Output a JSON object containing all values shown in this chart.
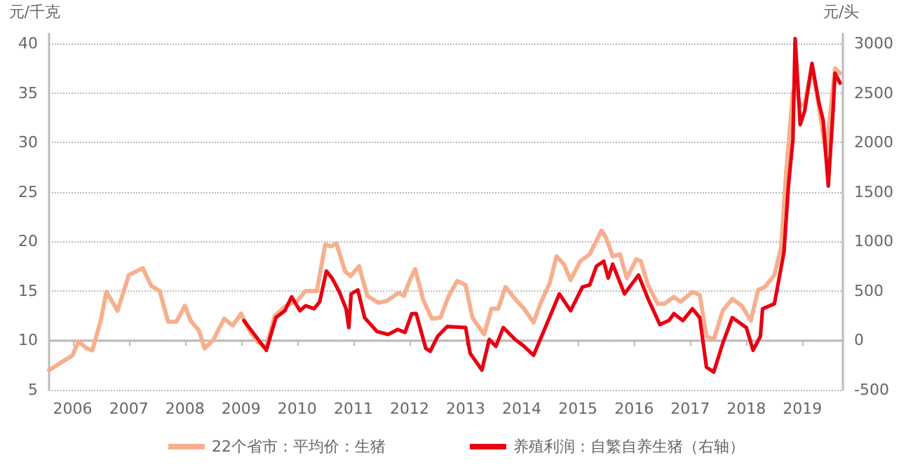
{
  "chart_data": {
    "type": "line",
    "ylabel": "元/千克",
    "y2label": "元/头",
    "xlim": [
      2005.58,
      2019.72
    ],
    "xticks": [
      2006,
      2007,
      2008,
      2009,
      2010,
      2011,
      2012,
      2013,
      2014,
      2015,
      2016,
      2017,
      2018,
      2019
    ],
    "ylim": [
      5,
      41
    ],
    "yticks": [
      5,
      10,
      15,
      20,
      25,
      30,
      35,
      40
    ],
    "y2lim": [
      -500,
      3100
    ],
    "y2ticks": [
      -500,
      0,
      500,
      1000,
      1500,
      2000,
      2500,
      3000
    ],
    "grid": "y",
    "legend": "bottom",
    "marker": "none",
    "line_style": "solid",
    "series": [
      {
        "name": "22个省市：平均价：生猪",
        "color": "#f6b08f",
        "x": [
          2005.58,
          2006.0,
          2006.1,
          2006.25,
          2006.35,
          2006.5,
          2006.6,
          2006.8,
          2007.0,
          2007.25,
          2007.4,
          2007.55,
          2007.7,
          2007.85,
          2008.0,
          2008.1,
          2008.25,
          2008.35,
          2008.5,
          2008.7,
          2008.85,
          2009.0,
          2009.15,
          2009.3,
          2009.45,
          2009.6,
          2009.8,
          2010.0,
          2010.15,
          2010.35,
          2010.5,
          2010.6,
          2010.7,
          2010.85,
          2010.95,
          2011.1,
          2011.25,
          2011.45,
          2011.6,
          2011.8,
          2011.9,
          2012.0,
          2012.1,
          2012.25,
          2012.4,
          2012.55,
          2012.7,
          2012.85,
          2013.0,
          2013.12,
          2013.33,
          2013.46,
          2013.58,
          2013.71,
          2013.88,
          2014.04,
          2014.21,
          2014.33,
          2014.5,
          2014.62,
          2014.75,
          2014.87,
          2015.04,
          2015.21,
          2015.42,
          2015.5,
          2015.62,
          2015.75,
          2015.87,
          2016.04,
          2016.12,
          2016.25,
          2016.42,
          2016.54,
          2016.71,
          2016.83,
          2017.04,
          2017.17,
          2017.29,
          2017.42,
          2017.58,
          2017.75,
          2017.92,
          2018.08,
          2018.21,
          2018.33,
          2018.5,
          2018.62,
          2018.71,
          2018.83,
          2018.88,
          2018.96,
          2019.04,
          2019.17,
          2019.29,
          2019.42,
          2019.58,
          2019.67
        ],
        "values": [
          7.0,
          8.5,
          9.9,
          9.2,
          9.0,
          12.0,
          14.9,
          13.0,
          16.6,
          17.3,
          15.5,
          15.0,
          11.9,
          11.9,
          13.5,
          12.0,
          11.0,
          9.2,
          10.0,
          12.2,
          11.5,
          12.7,
          11.0,
          9.8,
          9.3,
          12.5,
          13.5,
          14.0,
          15.0,
          15.0,
          19.7,
          19.5,
          19.8,
          17.0,
          16.5,
          17.5,
          14.5,
          13.8,
          14.0,
          14.8,
          14.5,
          16.0,
          17.2,
          14.0,
          12.2,
          12.3,
          14.5,
          16.0,
          15.6,
          12.3,
          10.6,
          13.2,
          13.2,
          15.4,
          14.2,
          13.2,
          11.8,
          13.7,
          15.8,
          18.5,
          17.7,
          16.1,
          18.0,
          18.7,
          21.1,
          20.4,
          18.5,
          18.7,
          16.3,
          18.2,
          18.0,
          15.6,
          13.7,
          13.7,
          14.4,
          13.9,
          14.9,
          14.6,
          10.4,
          10.1,
          13.0,
          14.2,
          13.5,
          12.0,
          15.1,
          15.4,
          16.6,
          19.4,
          27.0,
          35.1,
          35.6,
          33.7,
          33.9,
          37.7,
          33.7,
          28.9,
          37.5,
          37.0
        ]
      },
      {
        "name": "养殖利润：自繁自养生猪（右轴）",
        "color": "#e60012",
        "axis": "y2",
        "x": [
          2009.05,
          2009.45,
          2009.62,
          2009.78,
          2009.9,
          2010.05,
          2010.15,
          2010.3,
          2010.4,
          2010.52,
          2010.62,
          2010.75,
          2010.87,
          2010.92,
          2010.96,
          2011.08,
          2011.2,
          2011.42,
          2011.62,
          2011.79,
          2011.92,
          2012.04,
          2012.12,
          2012.29,
          2012.37,
          2012.5,
          2012.67,
          2013.0,
          2013.08,
          2013.29,
          2013.42,
          2013.54,
          2013.67,
          2013.88,
          2014.04,
          2014.21,
          2014.42,
          2014.67,
          2014.87,
          2015.08,
          2015.21,
          2015.33,
          2015.46,
          2015.54,
          2015.62,
          2015.83,
          2016.08,
          2016.25,
          2016.46,
          2016.62,
          2016.71,
          2016.87,
          2017.04,
          2017.17,
          2017.29,
          2017.42,
          2017.58,
          2017.75,
          2018.0,
          2018.12,
          2018.25,
          2018.29,
          2018.5,
          2018.67,
          2018.75,
          2018.83,
          2018.87,
          2018.96,
          2019.04,
          2019.17,
          2019.29,
          2019.37,
          2019.46,
          2019.54,
          2019.58,
          2019.67
        ],
        "values": [
          200,
          -100,
          230,
          300,
          440,
          300,
          350,
          320,
          390,
          700,
          630,
          490,
          320,
          130,
          470,
          510,
          230,
          90,
          60,
          110,
          80,
          270,
          270,
          -80,
          -110,
          40,
          140,
          130,
          -130,
          -300,
          10,
          -60,
          130,
          10,
          -60,
          -150,
          130,
          470,
          300,
          540,
          560,
          750,
          800,
          630,
          770,
          470,
          660,
          420,
          160,
          200,
          270,
          200,
          320,
          230,
          -270,
          -320,
          -30,
          230,
          130,
          -100,
          40,
          320,
          370,
          890,
          1560,
          2030,
          3050,
          2180,
          2320,
          2800,
          2410,
          2220,
          1560,
          2270,
          2700,
          2600
        ]
      }
    ]
  }
}
